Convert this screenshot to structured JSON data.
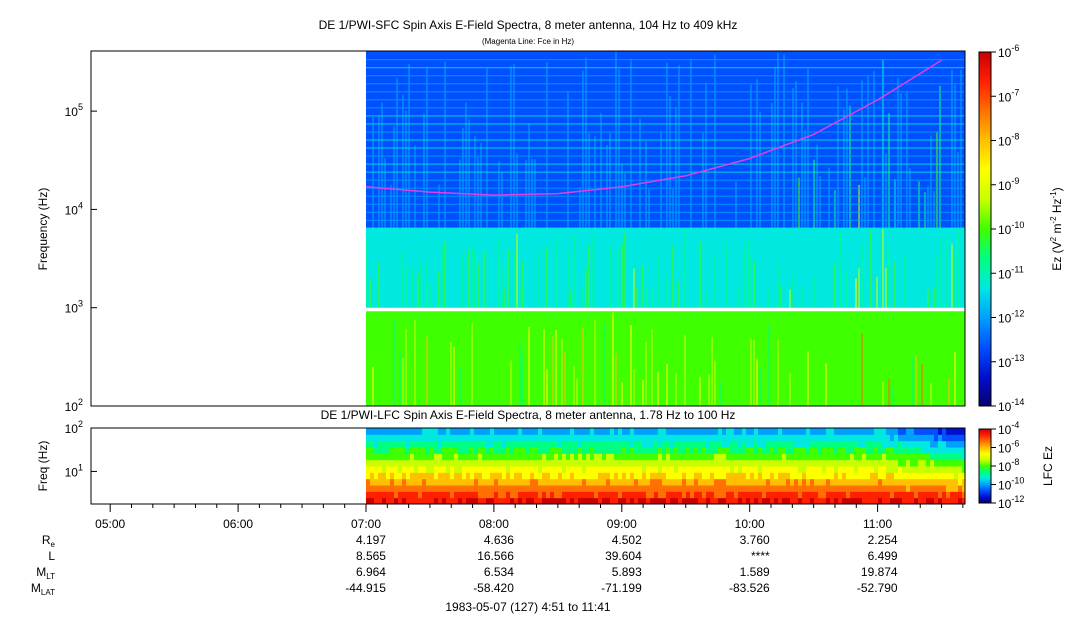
{
  "colors": {
    "background": "#ffffff",
    "fce_line": "#e040e8",
    "colormap": [
      "#08006e",
      "#0010d0",
      "#0050ff",
      "#00a0ff",
      "#00e8e0",
      "#00ff80",
      "#40ff00",
      "#c8ff00",
      "#ffff00",
      "#ffc000",
      "#ff7000",
      "#ff2000",
      "#c80000"
    ]
  },
  "chart_data": [
    {
      "type": "heatmap",
      "title": "DE 1/PWI-SFC  Spin Axis E-Field Spectra, 8 meter antenna, 104 Hz to 409 kHz",
      "subtitle": "(Magenta Line: Fce in Hz)",
      "ylabel": "Frequency (Hz)",
      "yscale": "log",
      "ylim": [
        100,
        409000
      ],
      "yticks": [
        {
          "value": 100,
          "label": "10",
          "exp": "2"
        },
        {
          "value": 1000,
          "label": "10",
          "exp": "3"
        },
        {
          "value": 10000,
          "label": "10",
          "exp": "4"
        },
        {
          "value": 100000,
          "label": "10",
          "exp": "5"
        }
      ],
      "xlim": [
        "04:51",
        "11:41"
      ],
      "data_start": "07:00",
      "colorbar": {
        "label": "Ez (V2 m-2 Hz-1)",
        "label_parts": [
          "Ez (V",
          "2",
          " m",
          "-2",
          " Hz",
          "-1",
          ")"
        ],
        "scale": "log",
        "range": [
          1e-14,
          1e-06
        ],
        "ticks": [
          {
            "value": -6,
            "label": "10",
            "exp": "-6"
          },
          {
            "value": -7,
            "label": "10",
            "exp": "-7"
          },
          {
            "value": -8,
            "label": "10",
            "exp": "-8"
          },
          {
            "value": -9,
            "label": "10",
            "exp": "-9"
          },
          {
            "value": -10,
            "label": "10",
            "exp": "-10"
          },
          {
            "value": -11,
            "label": "10",
            "exp": "-11"
          },
          {
            "value": -12,
            "label": "10",
            "exp": "-12"
          },
          {
            "value": -13,
            "label": "10",
            "exp": "-13"
          },
          {
            "value": -14,
            "label": "10",
            "exp": "-14"
          }
        ]
      },
      "bands": [
        {
          "name": "high",
          "fmin": 6500,
          "fmax": 409000,
          "level": 2.4
        },
        {
          "name": "mid",
          "fmin": 1000,
          "fmax": 6500,
          "level": 4.2
        },
        {
          "name": "low",
          "fmin": 100,
          "fmax": 920,
          "level": 6.0
        }
      ],
      "fce_line": {
        "times": [
          "07:00",
          "07:30",
          "08:00",
          "08:30",
          "09:00",
          "09:30",
          "10:00",
          "10:30",
          "11:00",
          "11:30"
        ],
        "values_hz": [
          17000,
          15000,
          14000,
          14500,
          17000,
          22000,
          33000,
          58000,
          130000,
          330000
        ]
      }
    },
    {
      "type": "heatmap",
      "title": "DE 1/PWI-LFC  Spin Axis E-Field Spectra, 8 meter antenna, 1.78 Hz to 100 Hz",
      "ylabel": "Freq (Hz)",
      "yscale": "log",
      "ylim": [
        1.78,
        100
      ],
      "yticks": [
        {
          "value": 10,
          "label": "10",
          "exp": "1"
        },
        {
          "value": 100,
          "label": "10",
          "exp": "2"
        }
      ],
      "colorbar": {
        "label": "LFC Ez",
        "scale": "log",
        "range": [
          1e-12,
          0.0001
        ],
        "ticks": [
          {
            "value": -4,
            "label": "10",
            "exp": "-4"
          },
          {
            "value": -6,
            "label": "10",
            "exp": "-6"
          },
          {
            "value": -8,
            "label": "10",
            "exp": "-8"
          },
          {
            "value": -10,
            "label": "10",
            "exp": "-10"
          },
          {
            "value": -12,
            "label": "10",
            "exp": "-12"
          }
        ]
      }
    }
  ],
  "time_axis": {
    "ticks": [
      "05:00",
      "06:00",
      "07:00",
      "08:00",
      "09:00",
      "10:00",
      "11:00"
    ],
    "rows": [
      {
        "label": "R",
        "sub": "e",
        "values": [
          "4.197",
          "4.636",
          "4.502",
          "3.760",
          "2.254"
        ]
      },
      {
        "label": "L",
        "sub": "",
        "values": [
          "8.565",
          "16.566",
          "39.604",
          "****",
          "6.499"
        ]
      },
      {
        "label": "M",
        "sub": "LT",
        "values": [
          "6.964",
          "6.534",
          "5.893",
          "1.589",
          "19.874"
        ]
      },
      {
        "label": "M",
        "sub": "LAT",
        "values": [
          "-44.915",
          "-58.420",
          "-71.199",
          "-83.526",
          "-52.790"
        ]
      }
    ],
    "footer": "1983-05-07 (127) 4:51 to 11:41"
  }
}
